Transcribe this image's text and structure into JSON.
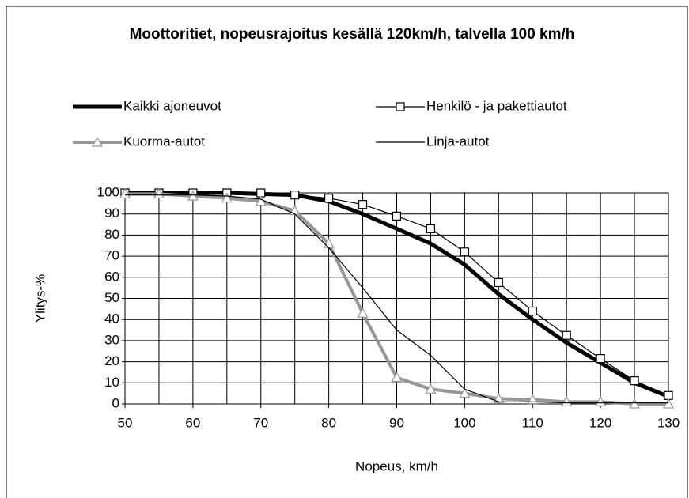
{
  "chart_data": {
    "type": "line",
    "title": "Moottoritiet, nopeusrajoitus kesällä 120km/h, talvella 100 km/h",
    "x_label": "Nopeus, km/h",
    "y_label": "Ylitys-%",
    "x": [
      50,
      55,
      60,
      65,
      70,
      75,
      80,
      85,
      90,
      95,
      100,
      105,
      110,
      115,
      120,
      125,
      130
    ],
    "series": [
      {
        "name": "Kaikki ajoneuvot",
        "color": "#000000",
        "width": 5,
        "marker": "none",
        "values": [
          100,
          100,
          100,
          100,
          99.5,
          99,
          96,
          90,
          83,
          76,
          66,
          52,
          40,
          29,
          19.5,
          10,
          3.5
        ]
      },
      {
        "name": "Henkilö - ja pakettiautot",
        "color": "#000000",
        "width": 1.2,
        "marker": "square",
        "values": [
          100,
          100,
          100,
          100,
          100,
          99,
          97.5,
          94.5,
          89,
          83,
          72,
          57.5,
          44,
          32.5,
          21.5,
          11,
          4
        ]
      },
      {
        "name": "Kuorma-autot",
        "color": "#969696",
        "width": 4,
        "marker": "triangle",
        "values": [
          99.5,
          99.5,
          98.5,
          97.5,
          96,
          91.5,
          76,
          43,
          12.5,
          7,
          5,
          2.5,
          2,
          1,
          1,
          0,
          0
        ]
      },
      {
        "name": "Linja-autot",
        "color": "#000000",
        "width": 1.2,
        "marker": "none",
        "values": [
          99,
          99,
          99,
          98.5,
          97,
          90,
          74,
          55,
          35,
          23,
          7,
          1,
          1,
          0.5,
          0.5,
          0.5,
          0.5
        ]
      }
    ],
    "xlim": [
      50,
      130
    ],
    "xticks": [
      50,
      60,
      70,
      80,
      90,
      100,
      110,
      120,
      130
    ],
    "xminor_grid": [
      55,
      65,
      75,
      85,
      95,
      105,
      115,
      125
    ],
    "ylim": [
      0,
      100
    ],
    "yticks": [
      0,
      10,
      20,
      30,
      40,
      50,
      60,
      70,
      80,
      90,
      100
    ],
    "grid": true,
    "legend": "top"
  }
}
